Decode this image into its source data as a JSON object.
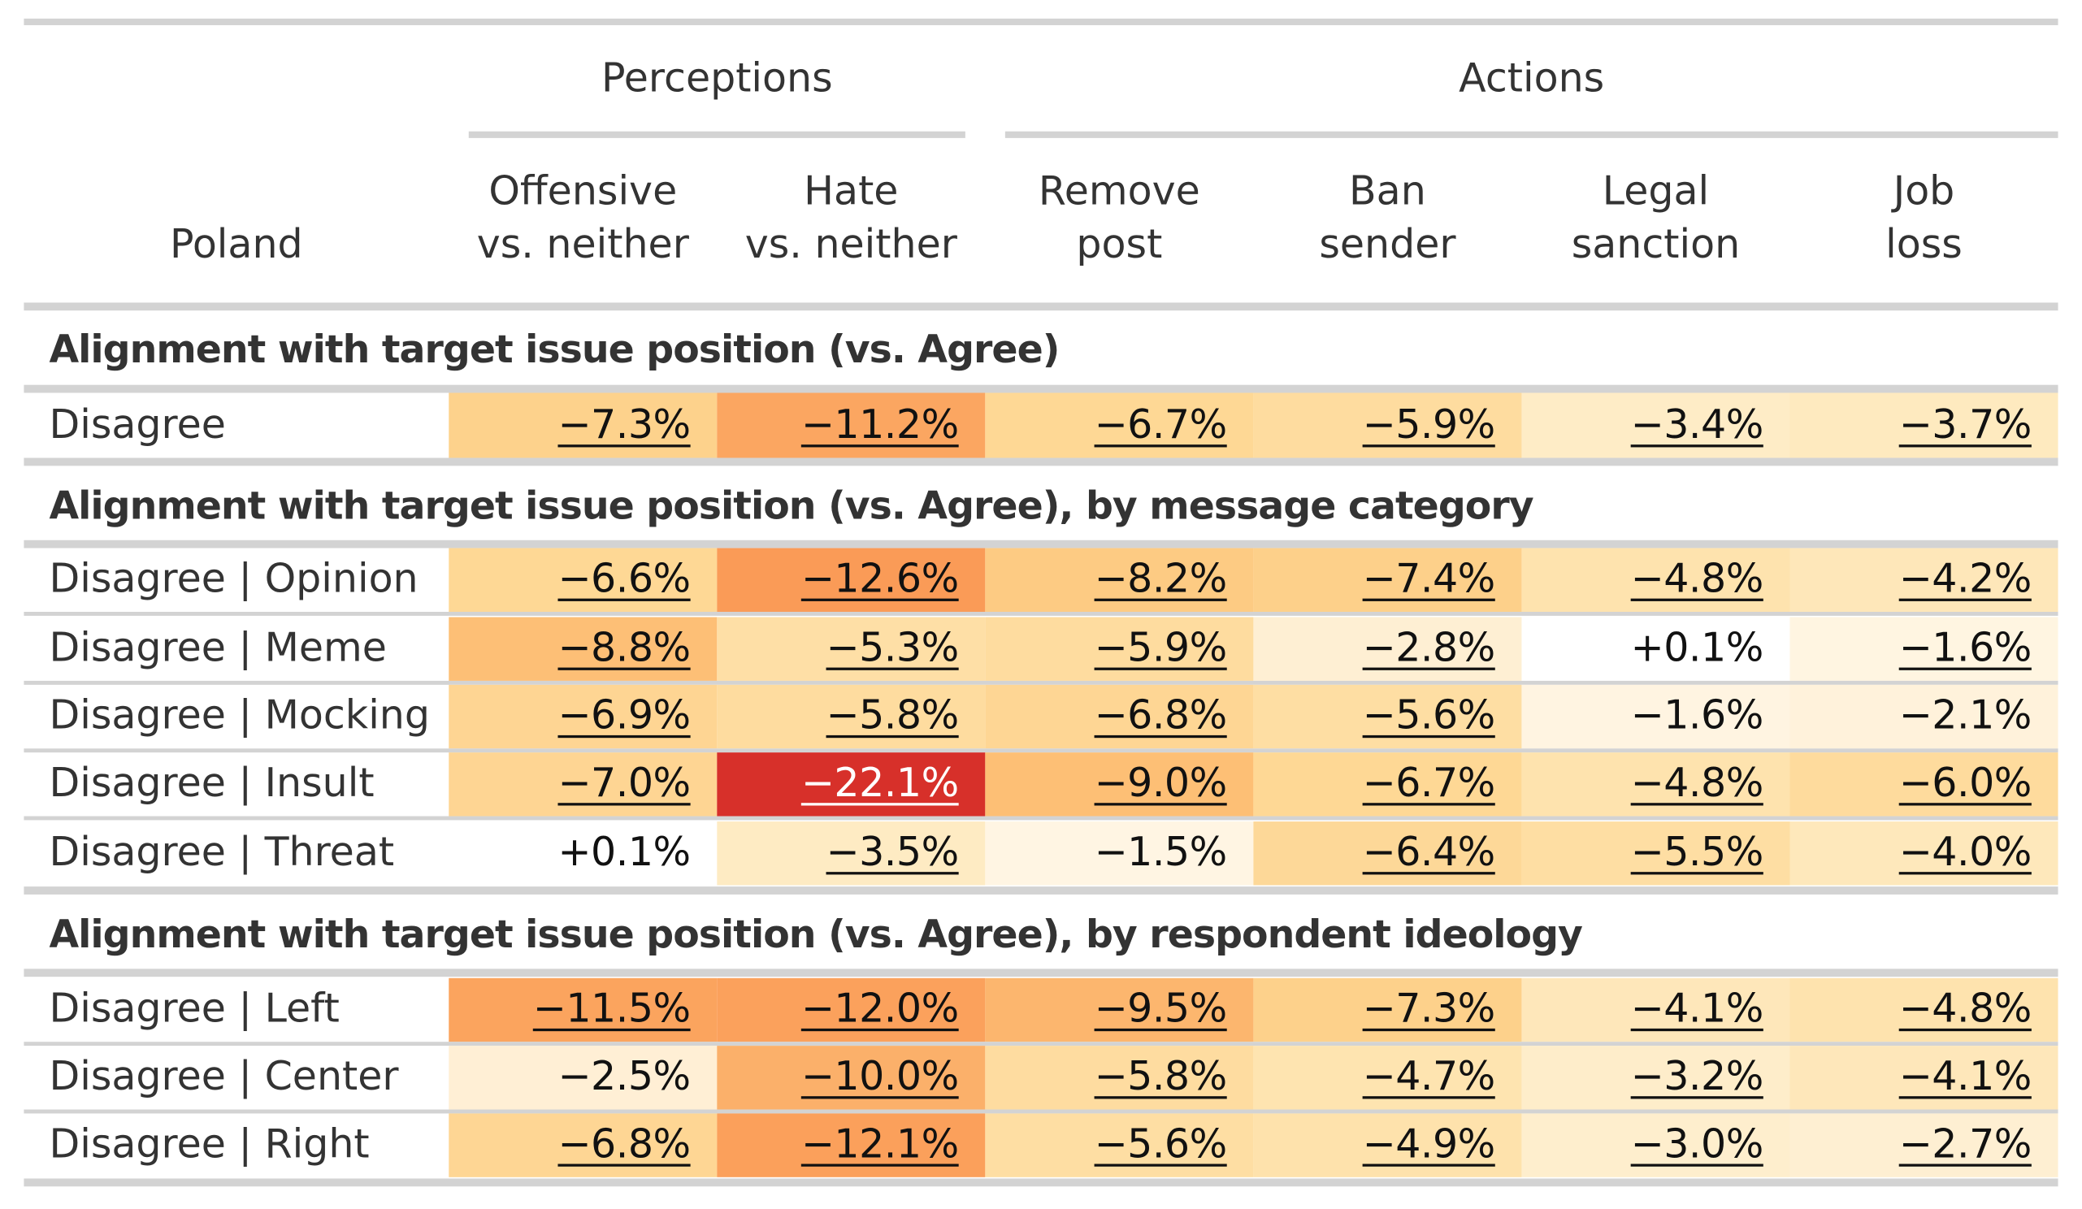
{
  "table": {
    "stub_header": "Poland",
    "spanners": [
      {
        "label": "Perceptions"
      },
      {
        "label": "Actions"
      }
    ],
    "columns": [
      {
        "line1": "Offensive",
        "line2": "vs. neither"
      },
      {
        "line1": "Hate",
        "line2": "vs. neither"
      },
      {
        "line1": "Remove",
        "line2": "post"
      },
      {
        "line1": "Ban",
        "line2": "sender"
      },
      {
        "line1": "Legal",
        "line2": "sanction"
      },
      {
        "line1": "Job",
        "line2": "loss"
      }
    ],
    "groups": [
      {
        "title": "Alignment with target issue position (vs. Agree)",
        "rows": [
          {
            "label": "Disagree",
            "cells": [
              {
                "text": "−7.3%",
                "value": -7.3,
                "sig": true,
                "bg": "#fdd28c"
              },
              {
                "text": "−11.2%",
                "value": -11.2,
                "sig": true,
                "bg": "#fba661"
              },
              {
                "text": "−6.7%",
                "value": -6.7,
                "sig": true,
                "bg": "#fed895"
              },
              {
                "text": "−5.9%",
                "value": -5.9,
                "sig": true,
                "bg": "#fedc9f"
              },
              {
                "text": "−3.4%",
                "value": -3.4,
                "sig": true,
                "bg": "#feecc6"
              },
              {
                "text": "−3.7%",
                "value": -3.7,
                "sig": true,
                "bg": "#feeabf"
              }
            ]
          }
        ]
      },
      {
        "title": "Alignment with target issue position (vs. Agree), by message category",
        "rows": [
          {
            "label": "Disagree | Opinion",
            "cells": [
              {
                "text": "−6.6%",
                "value": -6.6,
                "sig": true,
                "bg": "#fed895"
              },
              {
                "text": "−12.6%",
                "value": -12.6,
                "sig": true,
                "bg": "#fa9b57"
              },
              {
                "text": "−8.2%",
                "value": -8.2,
                "sig": true,
                "bg": "#fdcb83"
              },
              {
                "text": "−7.4%",
                "value": -7.4,
                "sig": true,
                "bg": "#fdd08a"
              },
              {
                "text": "−4.8%",
                "value": -4.8,
                "sig": true,
                "bg": "#fee3ae"
              },
              {
                "text": "−4.2%",
                "value": -4.2,
                "sig": true,
                "bg": "#fee7b9"
              }
            ]
          },
          {
            "label": "Disagree | Meme",
            "cells": [
              {
                "text": "−8.8%",
                "value": -8.8,
                "sig": true,
                "bg": "#fdbf76"
              },
              {
                "text": "−5.3%",
                "value": -5.3,
                "sig": true,
                "bg": "#fedfa6"
              },
              {
                "text": "−5.9%",
                "value": -5.9,
                "sig": true,
                "bg": "#fedc9f"
              },
              {
                "text": "−2.8%",
                "value": -2.8,
                "sig": true,
                "bg": "#feefd3"
              },
              {
                "text": "+0.1%",
                "value": 0.1,
                "sig": false,
                "bg": "#ffffff"
              },
              {
                "text": "−1.6%",
                "value": -1.6,
                "sig": true,
                "bg": "#fff5e1"
              }
            ]
          },
          {
            "label": "Disagree | Mocking",
            "cells": [
              {
                "text": "−6.9%",
                "value": -6.9,
                "sig": true,
                "bg": "#fed593"
              },
              {
                "text": "−5.8%",
                "value": -5.8,
                "sig": true,
                "bg": "#fedc9f"
              },
              {
                "text": "−6.8%",
                "value": -6.8,
                "sig": true,
                "bg": "#fed694"
              },
              {
                "text": "−5.6%",
                "value": -5.6,
                "sig": true,
                "bg": "#fedea3"
              },
              {
                "text": "−1.6%",
                "value": -1.6,
                "sig": false,
                "bg": "#fff4e1"
              },
              {
                "text": "−2.1%",
                "value": -2.1,
                "sig": false,
                "bg": "#fff2db"
              }
            ]
          },
          {
            "label": "Disagree | Insult",
            "cells": [
              {
                "text": "−7.0%",
                "value": -7.0,
                "sig": true,
                "bg": "#fed593"
              },
              {
                "text": "−22.1%",
                "value": -22.1,
                "sig": true,
                "bg": "#d7302a"
              },
              {
                "text": "−9.0%",
                "value": -9.0,
                "sig": true,
                "bg": "#fdbf75"
              },
              {
                "text": "−6.7%",
                "value": -6.7,
                "sig": true,
                "bg": "#fed895"
              },
              {
                "text": "−4.8%",
                "value": -4.8,
                "sig": true,
                "bg": "#fee3ae"
              },
              {
                "text": "−6.0%",
                "value": -6.0,
                "sig": true,
                "bg": "#fedb9d"
              }
            ]
          },
          {
            "label": "Disagree | Threat",
            "cells": [
              {
                "text": "+0.1%",
                "value": 0.1,
                "sig": false,
                "bg": "#ffffff"
              },
              {
                "text": "−3.5%",
                "value": -3.5,
                "sig": true,
                "bg": "#feebc3"
              },
              {
                "text": "−1.5%",
                "value": -1.5,
                "sig": false,
                "bg": "#fff5e3"
              },
              {
                "text": "−6.4%",
                "value": -6.4,
                "sig": true,
                "bg": "#fdd898"
              },
              {
                "text": "−5.5%",
                "value": -5.5,
                "sig": true,
                "bg": "#fedea3"
              },
              {
                "text": "−4.0%",
                "value": -4.0,
                "sig": true,
                "bg": "#fee8bb"
              }
            ]
          }
        ]
      },
      {
        "title": "Alignment with target issue position (vs. Agree), by respondent ideology",
        "rows": [
          {
            "label": "Disagree | Left",
            "cells": [
              {
                "text": "−11.5%",
                "value": -11.5,
                "sig": true,
                "bg": "#fba45e"
              },
              {
                "text": "−12.0%",
                "value": -12.0,
                "sig": true,
                "bg": "#fba15c"
              },
              {
                "text": "−9.5%",
                "value": -9.5,
                "sig": true,
                "bg": "#fcb66e"
              },
              {
                "text": "−7.3%",
                "value": -7.3,
                "sig": true,
                "bg": "#fdd18b"
              },
              {
                "text": "−4.1%",
                "value": -4.1,
                "sig": true,
                "bg": "#fee7ba"
              },
              {
                "text": "−4.8%",
                "value": -4.8,
                "sig": true,
                "bg": "#fee3ae"
              }
            ]
          },
          {
            "label": "Disagree | Center",
            "cells": [
              {
                "text": "−2.5%",
                "value": -2.5,
                "sig": false,
                "bg": "#ffefd5"
              },
              {
                "text": "−10.0%",
                "value": -10.0,
                "sig": true,
                "bg": "#fbb06a"
              },
              {
                "text": "−5.8%",
                "value": -5.8,
                "sig": true,
                "bg": "#fedca0"
              },
              {
                "text": "−4.7%",
                "value": -4.7,
                "sig": true,
                "bg": "#fee4b0"
              },
              {
                "text": "−3.2%",
                "value": -3.2,
                "sig": true,
                "bg": "#feedca"
              },
              {
                "text": "−4.1%",
                "value": -4.1,
                "sig": true,
                "bg": "#fee7ba"
              }
            ]
          },
          {
            "label": "Disagree | Right",
            "cells": [
              {
                "text": "−6.8%",
                "value": -6.8,
                "sig": true,
                "bg": "#fed694"
              },
              {
                "text": "−12.1%",
                "value": -12.1,
                "sig": true,
                "bg": "#fba05b"
              },
              {
                "text": "−5.6%",
                "value": -5.6,
                "sig": true,
                "bg": "#fedea3"
              },
              {
                "text": "−4.9%",
                "value": -4.9,
                "sig": true,
                "bg": "#fee2ac"
              },
              {
                "text": "−3.0%",
                "value": -3.0,
                "sig": true,
                "bg": "#feeecd"
              },
              {
                "text": "−2.7%",
                "value": -2.7,
                "sig": true,
                "bg": "#feefd2"
              }
            ]
          }
        ]
      }
    ]
  }
}
